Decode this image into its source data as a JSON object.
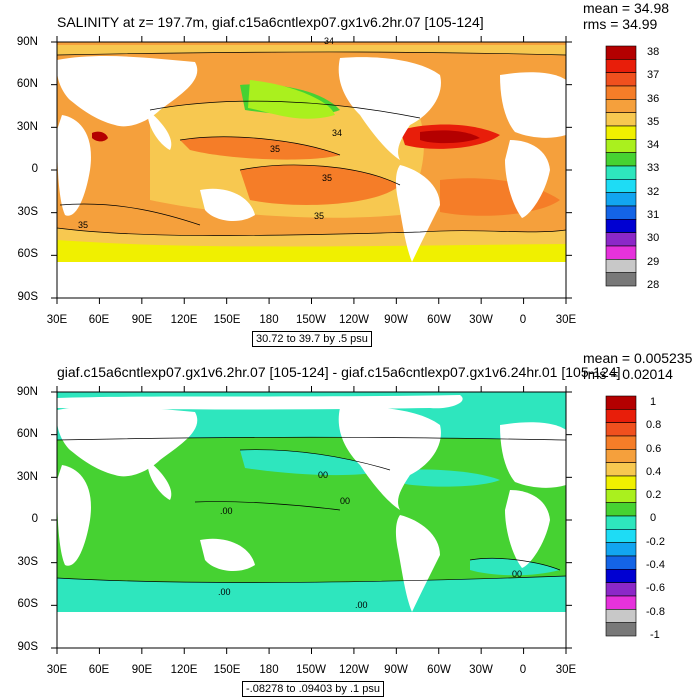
{
  "panels": [
    {
      "title": "SALINITY at z= 197.7m, giaf.c15a6cntlexp07.gx1v6.2hr.07 [105-124]",
      "mean": "mean = 34.98",
      "rms": "rms = 34.99",
      "range": "30.72 to 39.7 by .5 psu",
      "colorbar_labels": [
        "38",
        "37",
        "36",
        "35",
        "34",
        "33",
        "32",
        "31",
        "30",
        "29",
        "28"
      ],
      "colorbar_colors": [
        "#b40000",
        "#e81e0a",
        "#f0501e",
        "#f57d28",
        "#f5a03c",
        "#f7c850",
        "#f0f000",
        "#aaf01e",
        "#46d232",
        "#2ee6be",
        "#1edcf5",
        "#12a5f0",
        "#1464e6",
        "#0000d2",
        "#8c28c8",
        "#e632dc",
        "#c8c8c8",
        "#787878"
      ],
      "contour_labels": [
        "34",
        "34",
        "35",
        "35",
        "35",
        "35"
      ],
      "lat_labels": [
        "90N",
        "60N",
        "30N",
        "0",
        "30S",
        "60S",
        "90S"
      ],
      "lon_labels": [
        "30E",
        "60E",
        "90E",
        "120E",
        "150E",
        "180",
        "150W",
        "120W",
        "90W",
        "60W",
        "30W",
        "0",
        "30E"
      ]
    },
    {
      "title": "giaf.c15a6cntlexp07.gx1v6.2hr.07 [105-124] - giaf.c15a6cntlexp07.gx1v6.24hr.01 [105-124]",
      "mean": "mean = 0.005235",
      "rms": "rms = 0.02014",
      "range": "-.08278 to .09403 by .1 psu",
      "colorbar_labels": [
        "1",
        "0.8",
        "0.6",
        "0.4",
        "0.2",
        "0",
        "-0.2",
        "-0.4",
        "-0.6",
        "-0.8",
        "-1"
      ],
      "colorbar_colors": [
        "#b40000",
        "#e81e0a",
        "#f0501e",
        "#f57d28",
        "#f5a03c",
        "#f7c850",
        "#f0f000",
        "#aaf01e",
        "#46d232",
        "#2ee6be",
        "#1edcf5",
        "#12a5f0",
        "#1464e6",
        "#0000d2",
        "#8c28c8",
        "#e632dc",
        "#c8c8c8",
        "#787878"
      ],
      "contour_labels": [
        "00",
        "00",
        ".00",
        ".00",
        ".00",
        "00"
      ],
      "lat_labels": [
        "90N",
        "60N",
        "30N",
        "0",
        "30S",
        "60S",
        "90S"
      ],
      "lon_labels": [
        "30E",
        "60E",
        "90E",
        "120E",
        "150E",
        "180",
        "150W",
        "120W",
        "90W",
        "60W",
        "30W",
        "0",
        "30E"
      ]
    }
  ]
}
